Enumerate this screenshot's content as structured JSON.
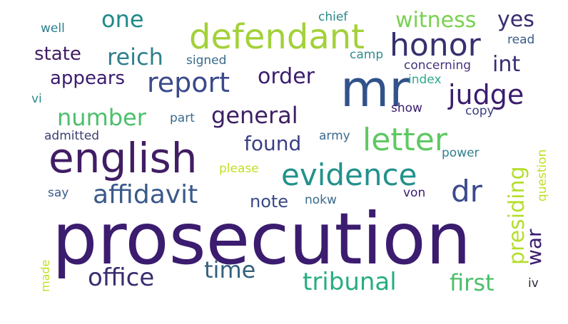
{
  "words": [
    {
      "text": "prosecution",
      "color": "#3b1c6f"
    },
    {
      "text": "english",
      "color": "#411d64"
    },
    {
      "text": "mr",
      "color": "#31528a"
    },
    {
      "text": "defendant",
      "color": "#a3d139"
    },
    {
      "text": "evidence",
      "color": "#22918c"
    },
    {
      "text": "affidavit",
      "color": "#3a5a8a"
    },
    {
      "text": "letter",
      "color": "#5ec962"
    },
    {
      "text": "honor",
      "color": "#35316f"
    },
    {
      "text": "judge",
      "color": "#3b1c6f"
    },
    {
      "text": "report",
      "color": "#3b4a8b"
    },
    {
      "text": "dr",
      "color": "#3b4a8b"
    },
    {
      "text": "tribunal",
      "color": "#27ae80"
    },
    {
      "text": "office",
      "color": "#3a2c6f"
    },
    {
      "text": "general",
      "color": "#3e1f63"
    },
    {
      "text": "time",
      "color": "#35607f"
    },
    {
      "text": "order",
      "color": "#3b1c6f"
    },
    {
      "text": "reich",
      "color": "#2f7f8e"
    },
    {
      "text": "number",
      "color": "#4cbf6b"
    },
    {
      "text": "one",
      "color": "#1f8a8a"
    },
    {
      "text": "witness",
      "color": "#7ad151"
    },
    {
      "text": "yes",
      "color": "#3a2c6f"
    },
    {
      "text": "presiding",
      "color": "#b5de2b"
    },
    {
      "text": "first",
      "color": "#4cbf6b"
    },
    {
      "text": "found",
      "color": "#3a3f83"
    },
    {
      "text": "appears",
      "color": "#3b1c6f"
    },
    {
      "text": "state",
      "color": "#411d64"
    },
    {
      "text": "note",
      "color": "#3a4a86"
    },
    {
      "text": "int",
      "color": "#3a2c6f"
    },
    {
      "text": "war",
      "color": "#3b1c6f"
    },
    {
      "text": "signed",
      "color": "#3a6a8c"
    },
    {
      "text": "concerning",
      "color": "#46337e"
    },
    {
      "text": "camp",
      "color": "#2f8e8c"
    },
    {
      "text": "chief",
      "color": "#2a8a8a"
    },
    {
      "text": "read",
      "color": "#3a5a8a"
    },
    {
      "text": "well",
      "color": "#2a7f8e"
    },
    {
      "text": "index",
      "color": "#2fa98b"
    },
    {
      "text": "show",
      "color": "#3b1c6f"
    },
    {
      "text": "copy",
      "color": "#3a3f83"
    },
    {
      "text": "part",
      "color": "#3a6a8c"
    },
    {
      "text": "admitted",
      "color": "#3b3f6f"
    },
    {
      "text": "army",
      "color": "#3a6a8c"
    },
    {
      "text": "power",
      "color": "#2f7f8e"
    },
    {
      "text": "please",
      "color": "#c2df23"
    },
    {
      "text": "say",
      "color": "#3a5a8a"
    },
    {
      "text": "nokw",
      "color": "#3a6a8c"
    },
    {
      "text": "von",
      "color": "#3b1c6f"
    },
    {
      "text": "question",
      "color": "#c2df23"
    },
    {
      "text": "made",
      "color": "#c2df23"
    },
    {
      "text": "iv",
      "color": "#2a2a3a"
    },
    {
      "text": "vi",
      "color": "#2a8a8a"
    }
  ]
}
